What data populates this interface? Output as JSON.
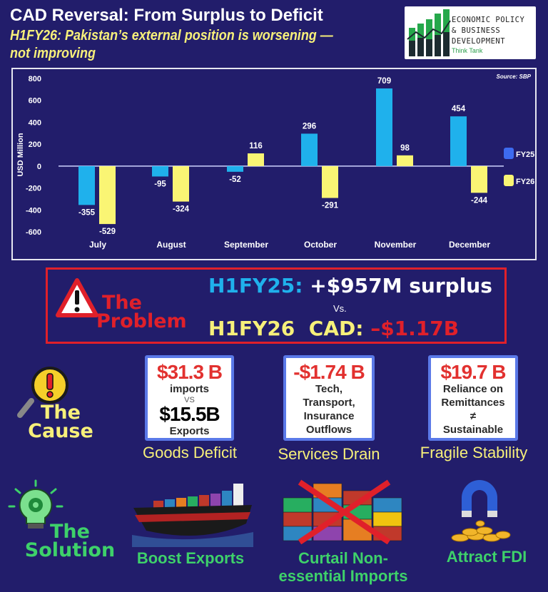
{
  "header": {
    "title": "CAD Reversal: From Surplus to Deficit",
    "subtitle": "H1FY26: Pakistan’s external position is worsening — not improving"
  },
  "logo": {
    "line1": "ECONOMIC POLICY",
    "line2": "& BUSINESS",
    "line3": "DEVELOPMENT",
    "line4": "Think Tank"
  },
  "chart_data": {
    "type": "bar",
    "categories": [
      "July",
      "August",
      "September",
      "October",
      "November",
      "December"
    ],
    "series": [
      {
        "name": "FY25",
        "values": [
          -355,
          -95,
          -52,
          296,
          709,
          454
        ],
        "color": "#1fb1ec"
      },
      {
        "name": "FY26",
        "values": [
          -529,
          -324,
          116,
          -291,
          98,
          -244
        ],
        "color": "#faf574"
      }
    ],
    "ylabel": "USD Million",
    "ylim": [
      -600,
      800
    ],
    "yticks": [
      800,
      600,
      400,
      200,
      0,
      -200,
      -400,
      -600
    ],
    "source": "Source: SBP",
    "legend": "right",
    "grid": false
  },
  "problem": {
    "label_line1": "The",
    "label_line2": "Problem",
    "h1fy25_label": "H1FY25:",
    "h1fy25_value": "+$957M surplus",
    "vs": "Vs.",
    "h1fy26_label": "H1FY26  CAD:",
    "h1fy26_value": "–$1.17B"
  },
  "cause": {
    "label_line1": "The",
    "label_line2": "Cause",
    "cards": [
      {
        "big": "$31.3 B",
        "line1": "imports",
        "vs": "VS",
        "big2": "$15.5B",
        "line2": "Exports",
        "caption": "Goods Deficit"
      },
      {
        "big": "-$1.74 B",
        "line1": "Tech,",
        "line2": "Transport,",
        "line3": "Insurance",
        "line4": "Outflows",
        "caption": "Services Drain"
      },
      {
        "big": "$19.7 B",
        "line1": "Reliance on",
        "line2": "Remittances",
        "line3": "≠",
        "line4": "Sustainable",
        "caption": "Fragile Stability"
      }
    ]
  },
  "solution": {
    "label_line1": "The",
    "label_line2": "Solution",
    "items": [
      {
        "caption": "Boost Exports"
      },
      {
        "caption_line1": "Curtail Non-",
        "caption_line2": "essential Imports"
      },
      {
        "caption": "Attract FDI"
      }
    ]
  }
}
